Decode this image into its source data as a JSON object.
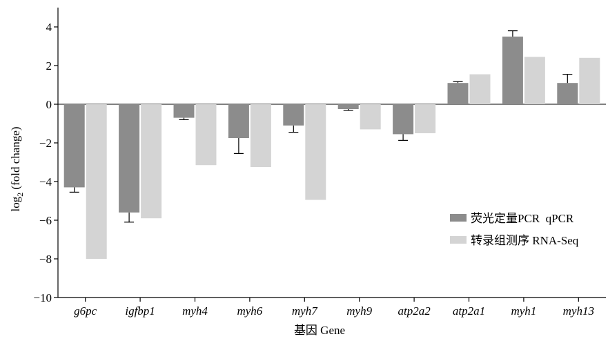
{
  "chart_data": {
    "type": "bar",
    "categories": [
      "g6pc",
      "igfbp1",
      "myh4",
      "myh6",
      "myh7",
      "myh9",
      "atp2a2",
      "atp2a1",
      "myh1",
      "myh13"
    ],
    "series": [
      {
        "name": "荧光定量PCR  qPCR",
        "color": "#8c8c8c",
        "values": [
          -4.3,
          -5.6,
          -0.7,
          -1.75,
          -1.1,
          -0.25,
          -1.55,
          1.1,
          3.5,
          1.1
        ],
        "error": [
          0.25,
          0.5,
          0.1,
          0.8,
          0.35,
          0.07,
          0.32,
          0.07,
          0.3,
          0.45
        ]
      },
      {
        "name": "转录组测序 RNA-Seq",
        "color": "#d4d4d4",
        "values": [
          -8.0,
          -5.9,
          -3.15,
          -3.25,
          -4.95,
          -1.3,
          -1.5,
          1.55,
          2.45,
          2.4
        ]
      }
    ],
    "xlabel": "基因 Gene",
    "ylabel_main": "log",
    "ylabel_sub": "2",
    "ylabel_rest": " (fold change)",
    "ylim": [
      -10,
      5
    ],
    "yticks": [
      "4",
      "2",
      "0",
      "−2",
      "−4",
      "−6",
      "−8",
      "−10"
    ],
    "legend_position": "lower-right",
    "grid": false
  }
}
